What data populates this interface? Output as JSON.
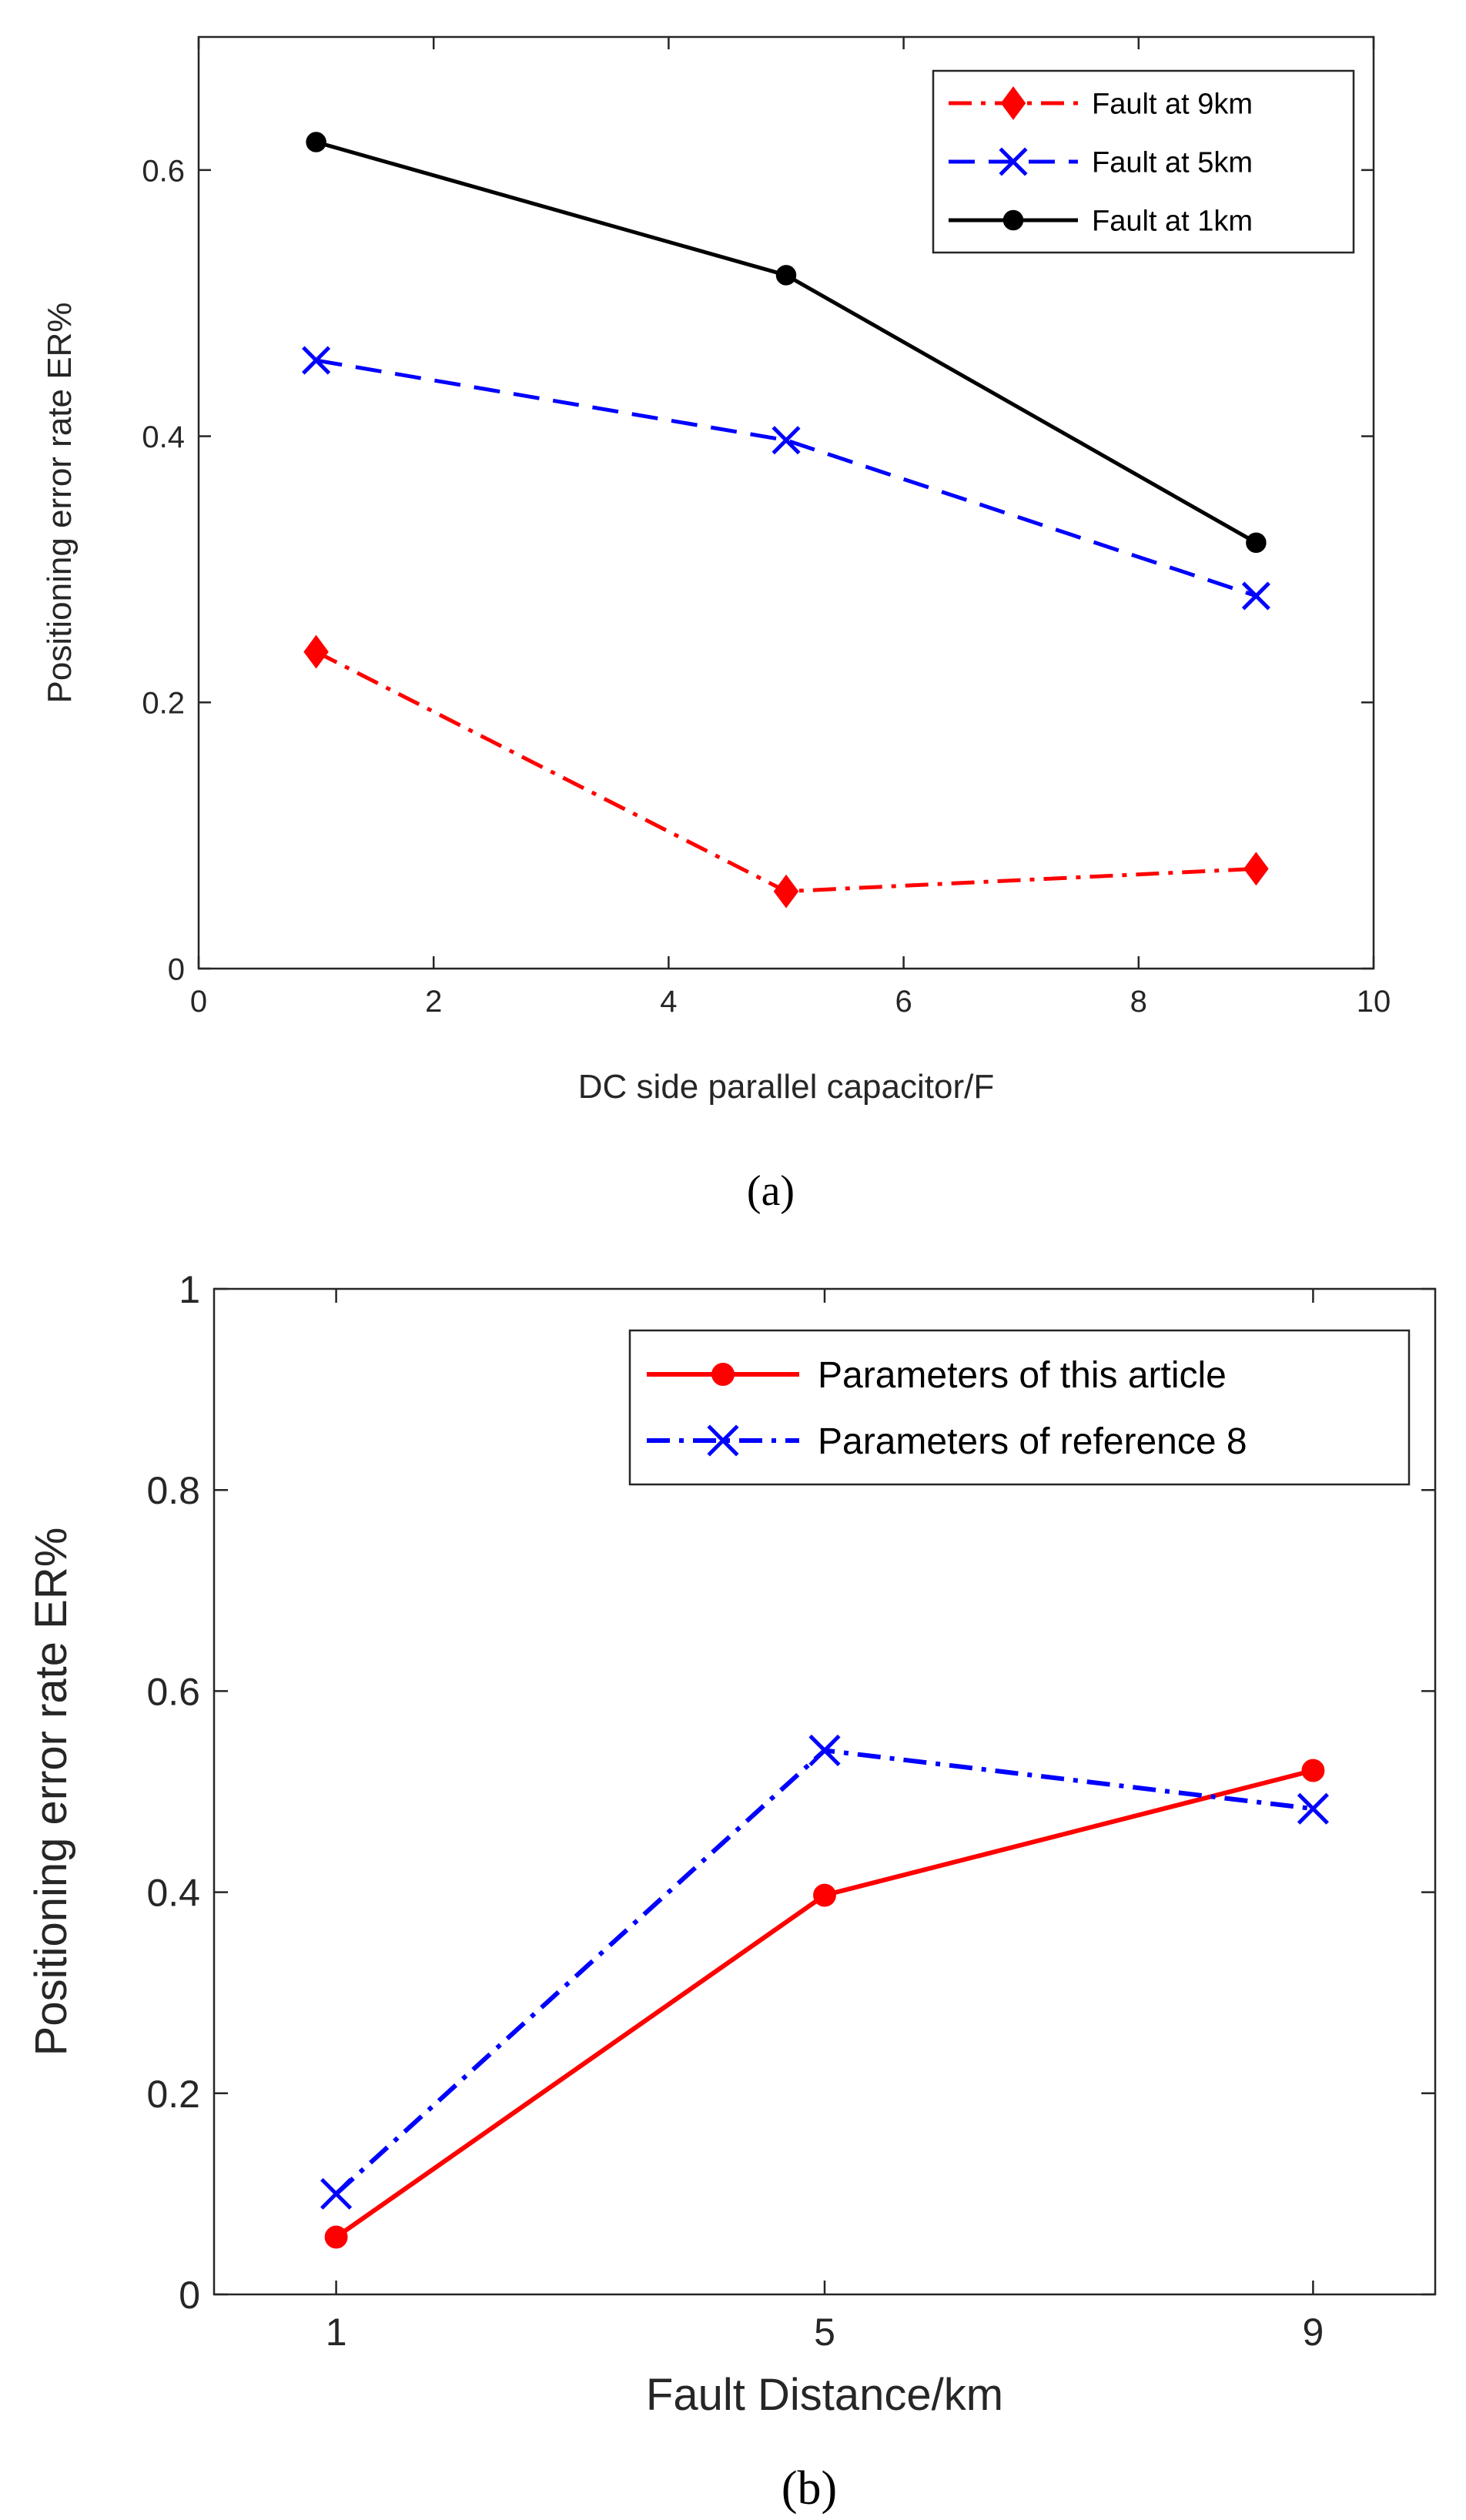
{
  "chart_data": [
    {
      "type": "line",
      "caption": "(a)",
      "xlabel": "DC side parallel capacitor/F",
      "ylabel": "Positioning error rate ER%",
      "xlim": [
        0,
        10
      ],
      "ylim": [
        0,
        0.7
      ],
      "xticks": [
        0,
        2,
        4,
        6,
        8,
        10
      ],
      "xtick_labels": [
        "0",
        "2",
        "4",
        "6",
        "8",
        "10"
      ],
      "yticks": [
        0,
        0.2,
        0.4,
        0.6
      ],
      "ytick_labels": [
        "0",
        "0.2",
        "0.4",
        "0.6"
      ],
      "grid": false,
      "legend_position": "top-right",
      "x": [
        1,
        5,
        9
      ],
      "series": [
        {
          "name": "Fault at 9km",
          "values": [
            0.238,
            0.058,
            0.075
          ],
          "color": "#ff0000",
          "line_style": "dash-dot",
          "marker": "diamond"
        },
        {
          "name": "Fault at 5km",
          "values": [
            0.457,
            0.397,
            0.28
          ],
          "color": "#0000ff",
          "line_style": "dashed",
          "marker": "x"
        },
        {
          "name": "Fault at 1km",
          "values": [
            0.621,
            0.521,
            0.32
          ],
          "color": "#000000",
          "line_style": "solid",
          "marker": "dot"
        }
      ]
    },
    {
      "type": "line",
      "caption": "(b)",
      "xlabel": "Fault Distance/km",
      "ylabel": "Positioning error rate ER%",
      "xlim": [
        0,
        10
      ],
      "ylim": [
        0,
        1
      ],
      "xticks": [
        1,
        5,
        9
      ],
      "xtick_labels": [
        "1",
        "5",
        "9"
      ],
      "yticks": [
        0,
        0.2,
        0.4,
        0.6,
        0.8,
        1
      ],
      "ytick_labels": [
        "0",
        "0.2",
        "0.4",
        "0.6",
        "0.8",
        "1"
      ],
      "grid": false,
      "legend_position": "top-right",
      "x": [
        1,
        5,
        9
      ],
      "series": [
        {
          "name": "Parameters of this article",
          "values": [
            0.057,
            0.397,
            0.521
          ],
          "color": "#ff0000",
          "line_style": "solid",
          "marker": "dot"
        },
        {
          "name": "Parameters of reference 8",
          "values": [
            0.1,
            0.541,
            0.483
          ],
          "color": "#0000ff",
          "line_style": "dash-dot",
          "marker": "x"
        }
      ]
    }
  ]
}
